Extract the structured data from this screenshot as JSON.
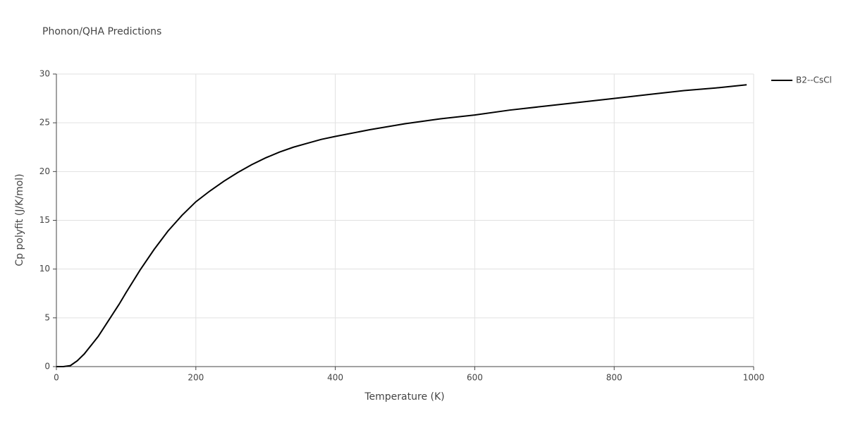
{
  "chart_data": {
    "type": "line",
    "title": "Phonon/QHA Predictions",
    "x_label": "Temperature (K)",
    "y_label": "Cp polyfit (J/K/mol)",
    "x": [
      0,
      10,
      20,
      30,
      40,
      50,
      60,
      70,
      80,
      90,
      100,
      120,
      140,
      160,
      180,
      200,
      220,
      240,
      260,
      280,
      300,
      320,
      340,
      360,
      380,
      400,
      450,
      500,
      550,
      600,
      650,
      700,
      750,
      800,
      850,
      900,
      950,
      990
    ],
    "series": [
      {
        "name": "B2--CsCl",
        "color": "#000000",
        "values": [
          0,
          0,
          0.1,
          0.6,
          1.3,
          2.2,
          3.1,
          4.2,
          5.3,
          6.4,
          7.6,
          9.9,
          12.0,
          13.9,
          15.5,
          16.9,
          18.0,
          19.0,
          19.9,
          20.7,
          21.4,
          22.0,
          22.5,
          22.9,
          23.3,
          23.6,
          24.3,
          24.9,
          25.4,
          25.8,
          26.3,
          26.7,
          27.1,
          27.5,
          27.9,
          28.3,
          28.6,
          28.9
        ]
      }
    ],
    "xlim": [
      0,
      1000
    ],
    "xticks": [
      0,
      200,
      400,
      600,
      800,
      1000
    ],
    "ylim": [
      0,
      30
    ],
    "yticks": [
      0,
      5,
      10,
      15,
      20,
      25,
      30
    ],
    "grid": true,
    "legend_position": "top-right"
  }
}
